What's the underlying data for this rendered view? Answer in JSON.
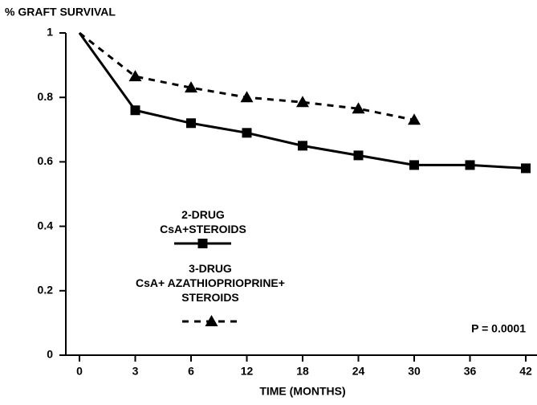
{
  "chart_data": {
    "type": "line",
    "title": "% GRAFT SURVIVAL",
    "xlabel": "TIME (MONTHS)",
    "categories": [
      "0",
      "3",
      "6",
      "12",
      "18",
      "24",
      "30",
      "36",
      "42"
    ],
    "series": [
      {
        "name": "2-DRUG\nCsA+STEROIDS",
        "color": "#000000",
        "dash": false,
        "marker": "square",
        "values": [
          1,
          0.76,
          0.72,
          0.69,
          0.65,
          0.62,
          0.59,
          0.59,
          0.58
        ]
      },
      {
        "name": "3-DRUG\nCsA+ AZATHIOPRIOPRINE+\nSTEROIDS",
        "color": "#000000",
        "dash": true,
        "marker": "triangle",
        "values": [
          1,
          0.865,
          0.83,
          0.8,
          0.785,
          0.765,
          0.73,
          null,
          null
        ]
      }
    ],
    "ylim": [
      0,
      1
    ],
    "yticks": [
      0,
      0.2,
      0.4,
      0.6,
      0.8,
      1
    ],
    "grid": false,
    "annotations": [
      "P = 0.0001"
    ]
  }
}
